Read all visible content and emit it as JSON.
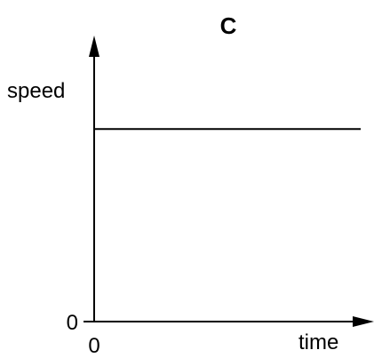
{
  "chart_data": {
    "type": "line",
    "title": "C",
    "xlabel": "time",
    "ylabel": "speed",
    "x_tick_labels": [
      "0"
    ],
    "y_tick_labels": [
      "0"
    ],
    "xlim": [
      0,
      10
    ],
    "ylim": [
      0,
      10
    ],
    "grid": false,
    "series": [
      {
        "x": [
          0,
          10
        ],
        "y": [
          7.4,
          7.4
        ]
      }
    ],
    "colors": {
      "line": "#000000",
      "axes": "#000000",
      "background": "#ffffff"
    }
  }
}
